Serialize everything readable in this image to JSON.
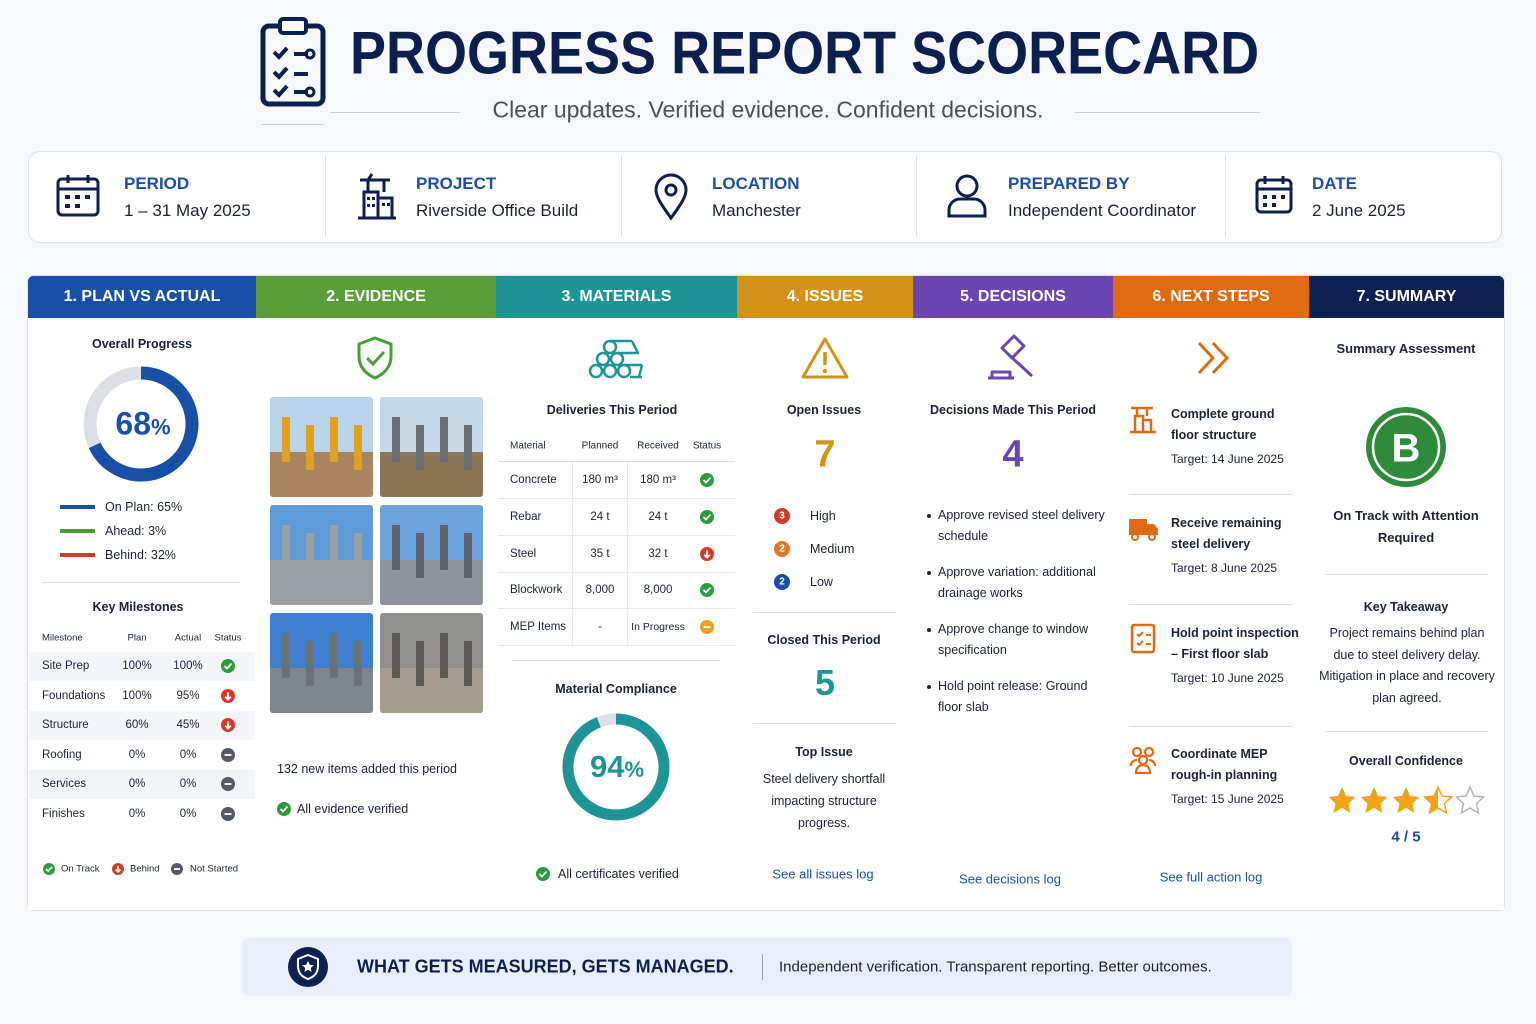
{
  "header": {
    "title": "PROGRESS REPORT SCORECARD",
    "subtitle": "Clear updates. Verified evidence. Confident decisions."
  },
  "info": [
    {
      "label": "PERIOD",
      "value": "1 – 31 May 2025"
    },
    {
      "label": "PROJECT",
      "value": "Riverside Office Build"
    },
    {
      "label": "LOCATION",
      "value": "Manchester"
    },
    {
      "label": "PREPARED BY",
      "value": "Independent Coordinator"
    },
    {
      "label": "DATE",
      "value": "2 June 2025"
    }
  ],
  "plan_vs_actual": {
    "heading": "1. PLAN VS ACTUAL",
    "progress_title": "Overall Progress",
    "progress": 68,
    "progress_unit": "%",
    "legend": [
      "On Plan: 65%",
      "Ahead: 3%",
      "Behind: 32%"
    ],
    "milestones_title": "Key Milestones",
    "columns": [
      "Milestone",
      "Plan",
      "Actual",
      "Status"
    ],
    "rows": [
      {
        "name": "Site Prep",
        "plan": "100%",
        "actual": "100%",
        "status": "On Track"
      },
      {
        "name": "Foundations",
        "plan": "100%",
        "actual": "95%",
        "status": "Behind"
      },
      {
        "name": "Structure",
        "plan": "60%",
        "actual": "45%",
        "status": "Behind"
      },
      {
        "name": "Roofing",
        "plan": "0%",
        "actual": "0%",
        "status": "Not Started"
      },
      {
        "name": "Services",
        "plan": "0%",
        "actual": "0%",
        "status": "Not Started"
      },
      {
        "name": "Finishes",
        "plan": "0%",
        "actual": "0%",
        "status": "Not Started"
      }
    ],
    "status_legend": [
      "On Track",
      "Behind",
      "Not Started"
    ]
  },
  "evidence": {
    "heading": "2. EVIDENCE",
    "items_note": "132 new items added this period",
    "verified": "All evidence verified"
  },
  "materials": {
    "heading": "3. MATERIALS",
    "deliveries_title": "Deliveries This Period",
    "columns": [
      "Material",
      "Planned",
      "Received",
      "Status"
    ],
    "rows": [
      [
        "Concrete",
        "180 m³",
        "180 m³"
      ],
      [
        "Rebar",
        "24 t",
        "24 t"
      ],
      [
        "Steel",
        "35 t",
        "32 t"
      ],
      [
        "Blockwork",
        "8,000",
        "8,000"
      ],
      [
        "MEP Items",
        "-",
        "In Progress"
      ]
    ],
    "compliance_title": "Material Compliance",
    "compliance": 94,
    "compliance_unit": "%",
    "verified": "All certificates verified"
  },
  "issues": {
    "heading": "4. ISSUES",
    "open_title": "Open Issues",
    "open": 7,
    "severity": [
      {
        "count": 3,
        "label": "High"
      },
      {
        "count": 2,
        "label": "Medium"
      },
      {
        "count": 2,
        "label": "Low"
      }
    ],
    "closed_title": "Closed This Period",
    "closed": 5,
    "top_title": "Top Issue",
    "top_text": "Steel delivery shortfall impacting structure progress.",
    "link": "See all issues log"
  },
  "decisions": {
    "heading": "5. DECISIONS",
    "title": "Decisions Made This Period",
    "count": 4,
    "items": [
      "Approve revised steel delivery schedule",
      "Approve variation: additional drainage works",
      "Approve change to window specification",
      "Hold point release: Ground floor slab"
    ],
    "link": "See decisions log"
  },
  "next_steps": {
    "heading": "6. NEXT STEPS",
    "items": [
      {
        "title": "Complete ground floor structure",
        "target": "Target: 14 June 2025"
      },
      {
        "title": "Receive remaining steel delivery",
        "target": "Target: 8 June 2025"
      },
      {
        "title": "Hold point inspection – First floor slab",
        "target": "Target: 10 June 2025"
      },
      {
        "title": "Coordinate MEP rough-in planning",
        "target": "Target: 15 June 2025"
      }
    ],
    "link": "See full action log"
  },
  "summary": {
    "heading": "7. SUMMARY",
    "title": "Summary Assessment",
    "grade": "B",
    "grade_text": "On Track with Attention Required",
    "takeaway_title": "Key Takeaway",
    "takeaway": "Project remains behind plan due to steel delivery delay. Mitigation in place and recovery plan agreed.",
    "confidence_title": "Overall Confidence",
    "confidence": "4 / 5"
  },
  "footer": {
    "motto": "WHAT GETS MEASURED, GETS MANAGED.",
    "tagline": "Independent verification. Transparent reporting. Better outcomes."
  }
}
